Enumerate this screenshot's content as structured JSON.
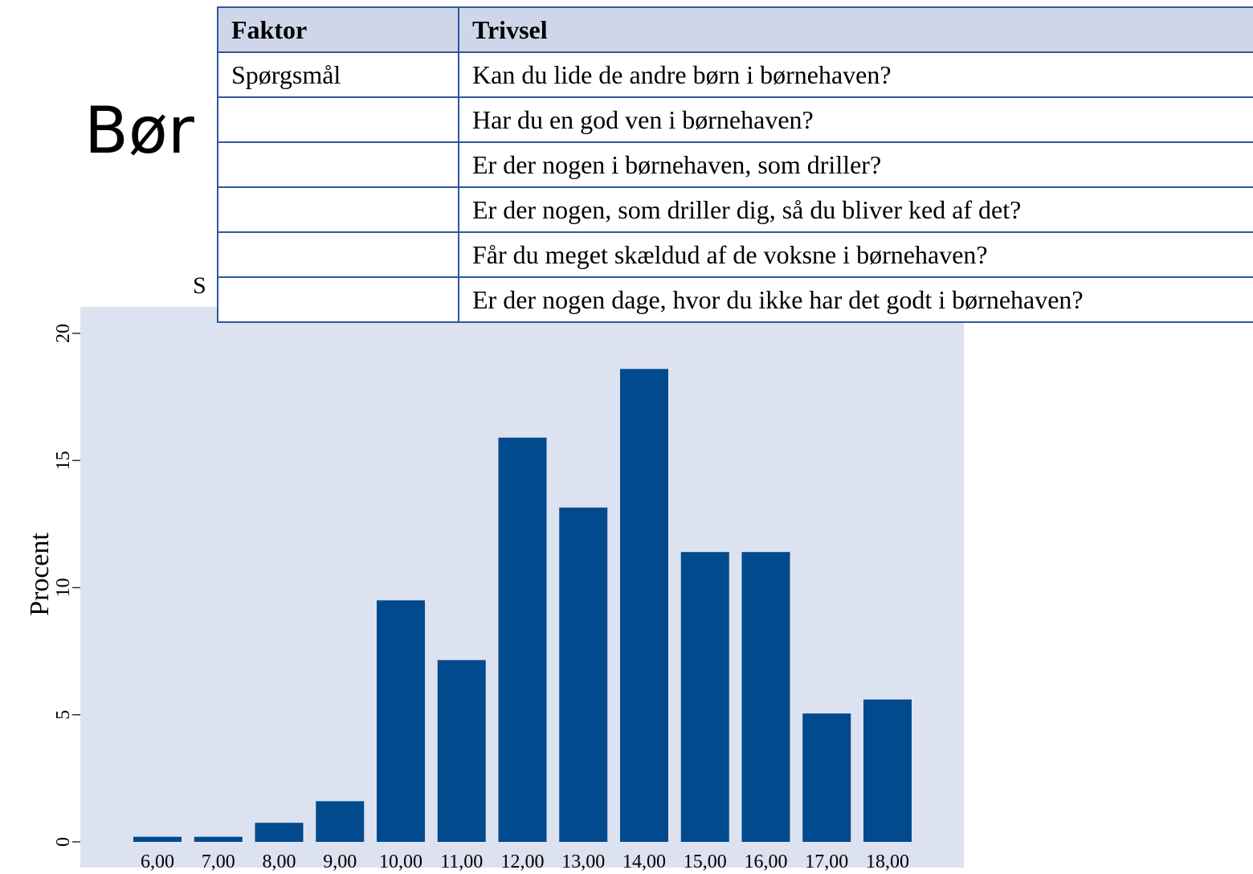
{
  "slide_title": "Bør",
  "chart_data": {
    "type": "bar",
    "title": "S",
    "y_label": "Procent",
    "categories": [
      "6,00",
      "7,00",
      "8,00",
      "9,00",
      "10,00",
      "11,00",
      "12,00",
      "13,00",
      "14,00",
      "15,00",
      "16,00",
      "17,00",
      "18,00"
    ],
    "values": [
      0.2,
      0.2,
      0.75,
      1.6,
      9.5,
      7.15,
      15.9,
      13.15,
      18.6,
      11.4,
      11.4,
      5.05,
      5.6
    ],
    "color": "#004a8d",
    "background": "#dde2f0",
    "ylim": [
      0,
      20
    ],
    "yticks": [
      0,
      5,
      10,
      15,
      20
    ],
    "grid": false
  },
  "table": {
    "columns": [
      "Faktor",
      "Trivsel"
    ],
    "row_label": "Spørgsmål",
    "questions": [
      "Kan du lide de andre børn i børnehaven?",
      "Har du en god ven i børnehaven?",
      "Er der nogen i børnehaven, som driller?",
      "Er der nogen, som driller dig, så du bliver ked af det?",
      "Får du meget skældud af de voksne i børnehaven?",
      "Er der nogen dage, hvor du ikke har det godt i børnehaven?"
    ]
  }
}
